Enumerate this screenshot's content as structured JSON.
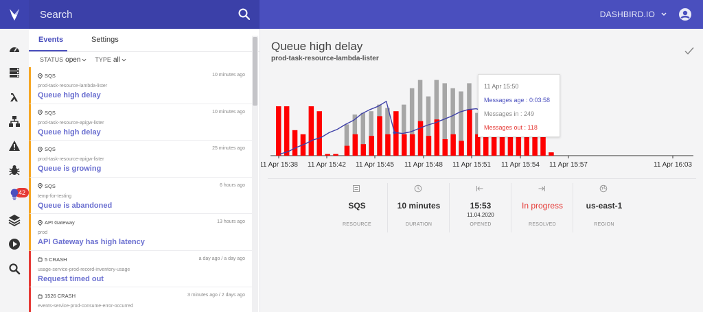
{
  "header": {
    "search_placeholder": "Search",
    "account": "DASHBIRD.IO"
  },
  "rail": {
    "icons": [
      "dashboard-icon",
      "database-icon",
      "lambda-icon",
      "network-icon",
      "alert-icon",
      "bug-icon",
      "lightbulb-icon",
      "layers-icon",
      "play-icon",
      "search-icon"
    ],
    "badge_count": "42",
    "active": "lightbulb-icon"
  },
  "list": {
    "tabs": [
      {
        "label": "Events",
        "active": true
      },
      {
        "label": "Settings",
        "active": false
      }
    ],
    "filters": {
      "status_label": "STATUS",
      "status_value": "open",
      "type_label": "TYPE",
      "type_value": "all"
    },
    "events": [
      {
        "source": "SQS",
        "time": "10 minutes ago",
        "fn": "prod-task-resource-lambda-lister",
        "title": "Queue high delay",
        "severity": "warn"
      },
      {
        "source": "SQS",
        "time": "10 minutes ago",
        "fn": "prod-task-resource-apigw-lister",
        "title": "Queue high delay",
        "severity": "warn"
      },
      {
        "source": "SQS",
        "time": "25 minutes ago",
        "fn": "prod-task-resource-apigw-lister",
        "title": "Queue is growing",
        "severity": "warn"
      },
      {
        "source": "SQS",
        "time": "6 hours ago",
        "fn": "temp-for-testing",
        "title": "Queue is abandoned",
        "severity": "warn"
      },
      {
        "source": "API Gateway",
        "time": "13 hours ago",
        "fn": "prod",
        "title": "API Gateway has high latency",
        "severity": "warn"
      },
      {
        "source": "5 CRASH",
        "time": "a day ago / a day ago",
        "fn": "usage-service-prod-record-inventory-usage",
        "title": "Request timed out",
        "severity": "err"
      },
      {
        "source": "1526 CRASH",
        "time": "3 minutes ago / 2 days ago",
        "fn": "events-service-prod-consume-error-occurred",
        "title": "",
        "severity": "err"
      }
    ]
  },
  "detail": {
    "title": "Queue high delay",
    "subtitle": "prod-task-resource-lambda-lister",
    "tooltip": {
      "time": "11 Apr 15:50",
      "age": "Messages age : 0:03:58",
      "in": "Messages in : 249",
      "out": "Messages out : 118"
    },
    "metrics": [
      {
        "icon": "list-icon",
        "value": "SQS",
        "sub": "",
        "label": "RESOURCE"
      },
      {
        "icon": "clock-icon",
        "value": "10 minutes",
        "sub": "",
        "label": "DURATION"
      },
      {
        "icon": "arrow-left-bar-icon",
        "value": "15:53",
        "sub": "11.04.2020",
        "label": "OPENED"
      },
      {
        "icon": "arrow-right-bar-icon",
        "value": "In progress",
        "sub": "",
        "label": "RESOLVED",
        "red": true
      },
      {
        "icon": "globe-icon",
        "value": "us-east-1",
        "sub": "",
        "label": "REGION"
      }
    ]
  },
  "chart_data": {
    "type": "bar",
    "title": "",
    "tick_labels": [
      "11 Apr 15:38",
      "11 Apr 15:42",
      "11 Apr 15:45",
      "11 Apr 15:48",
      "11 Apr 15:51",
      "11 Apr 15:54",
      "11 Apr 15:57",
      "11 Apr 16:03"
    ],
    "colors": {
      "out": "#ff0000",
      "in": "#a6a6a6",
      "age": "#3f41a8"
    },
    "series": [
      {
        "name": "Messages out",
        "values": [
          60,
          60,
          31,
          26,
          60,
          54,
          2,
          2,
          12,
          26,
          14,
          24,
          48,
          26,
          54,
          26,
          26,
          42,
          24,
          44,
          20,
          26,
          18,
          56,
          26,
          24,
          44,
          26,
          58,
          58,
          58,
          62,
          54,
          4
        ]
      },
      {
        "name": "Messages in",
        "values": [
          0,
          0,
          0,
          0,
          0,
          0,
          0,
          0,
          38,
          50,
          52,
          54,
          62,
          58,
          48,
          62,
          82,
          92,
          72,
          92,
          88,
          82,
          78,
          88,
          52,
          64,
          72,
          96,
          46,
          54,
          34,
          60,
          46,
          4
        ]
      },
      {
        "name": "Messages age",
        "values": [
          2,
          5,
          10,
          14,
          19,
          22,
          28,
          32,
          38,
          43,
          51,
          56,
          60,
          66,
          28,
          27,
          29,
          33,
          37,
          40,
          44,
          48,
          53,
          56,
          57,
          54,
          55,
          56,
          57,
          58,
          60,
          62,
          66,
          70
        ]
      }
    ],
    "tooltip_index": 14
  }
}
